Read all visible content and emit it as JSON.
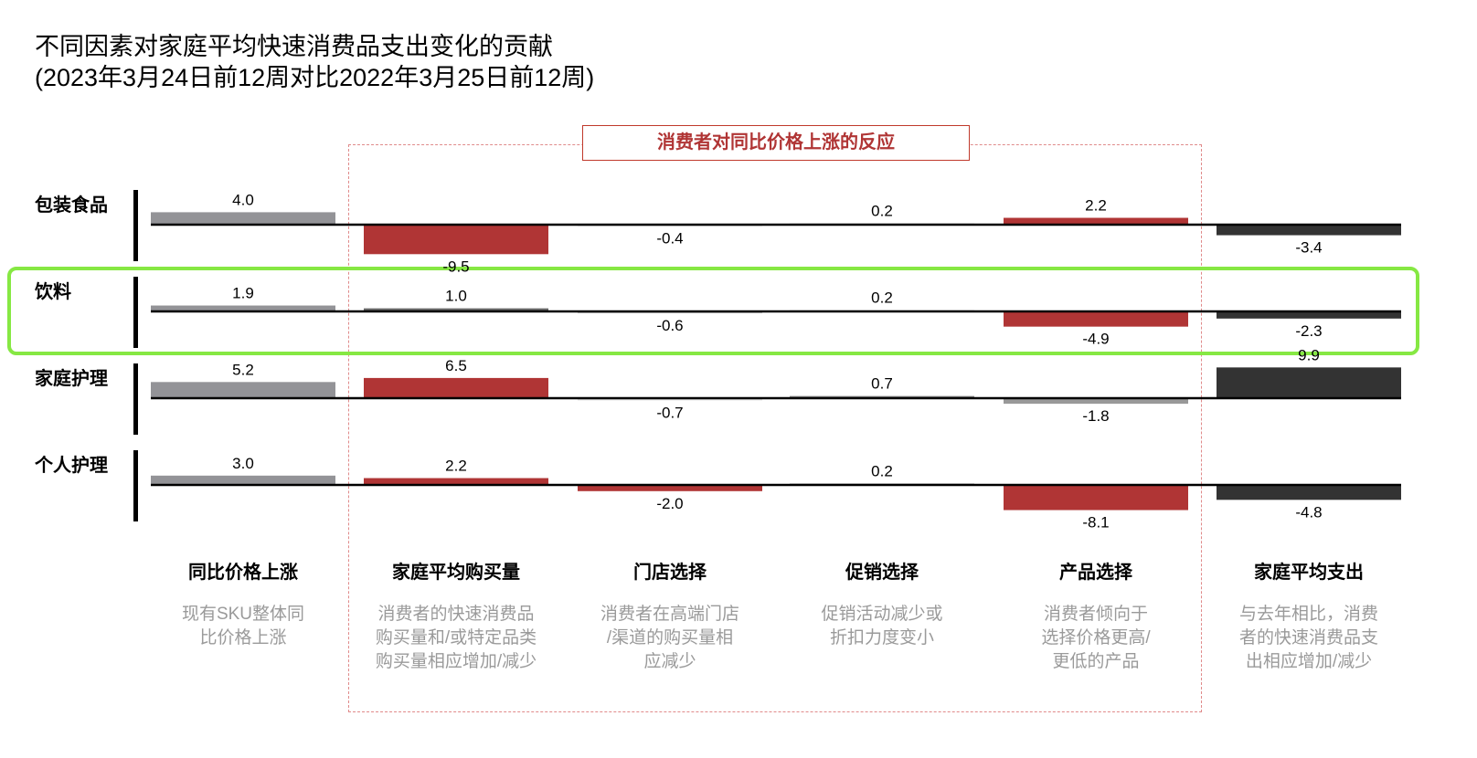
{
  "chart_data": {
    "type": "bar",
    "title": [
      "不同因素对家庭平均快速消费品支出变化的贡献",
      "(2023年3月24日前12周对比2022年3月25日前12周)"
    ],
    "group_label": "消费者对同比价格上涨的反应",
    "categories": [
      "同比价格上涨",
      "家庭平均购买量",
      "门店选择",
      "促销选择",
      "产品选择",
      "家庭平均支出"
    ],
    "descriptions": [
      [
        "现有SKU整体同",
        "比价格上涨"
      ],
      [
        "消费者的快速消费品",
        "购买量和/或特定品类",
        "购买量相应增加/减少"
      ],
      [
        "消费者在高端门店",
        "/渠道的购买量相",
        "应减少"
      ],
      [
        "促销活动减少或",
        "折扣力度变小"
      ],
      [
        "消费者倾向于",
        "选择价格更高/",
        "更低的产品"
      ],
      [
        "与去年相比，消费",
        "者的快速消费品支",
        "出相应增加/减少"
      ]
    ],
    "highlighted_row": "饮料",
    "highlight_color": "#86e843",
    "rows": [
      {
        "name": "包装食品",
        "values": [
          "4.0",
          "-9.5",
          "-0.4",
          "0.2",
          "2.2",
          "-3.4"
        ],
        "colors": [
          "#939397",
          "#b03535",
          "#cccccc",
          "#dddddd",
          "#b03535",
          "#333333"
        ]
      },
      {
        "name": "饮料",
        "values": [
          "1.9",
          "1.0",
          "-0.6",
          "0.2",
          "-4.9",
          "-2.3"
        ],
        "colors": [
          "#939397",
          "#6b6b6b",
          "#c8c8c8",
          "#dddddd",
          "#b03535",
          "#333333"
        ]
      },
      {
        "name": "家庭护理",
        "values": [
          "5.2",
          "6.5",
          "-0.7",
          "0.7",
          "-1.8",
          "9.9"
        ],
        "colors": [
          "#939397",
          "#b03535",
          "#dddddd",
          "#888888",
          "#999999",
          "#333333"
        ]
      },
      {
        "name": "个人护理",
        "values": [
          "3.0",
          "2.2",
          "-2.0",
          "0.2",
          "-8.1",
          "-4.8"
        ],
        "colors": [
          "#939397",
          "#b03535",
          "#b03535",
          "#888888",
          "#b03535",
          "#333333"
        ]
      }
    ]
  }
}
